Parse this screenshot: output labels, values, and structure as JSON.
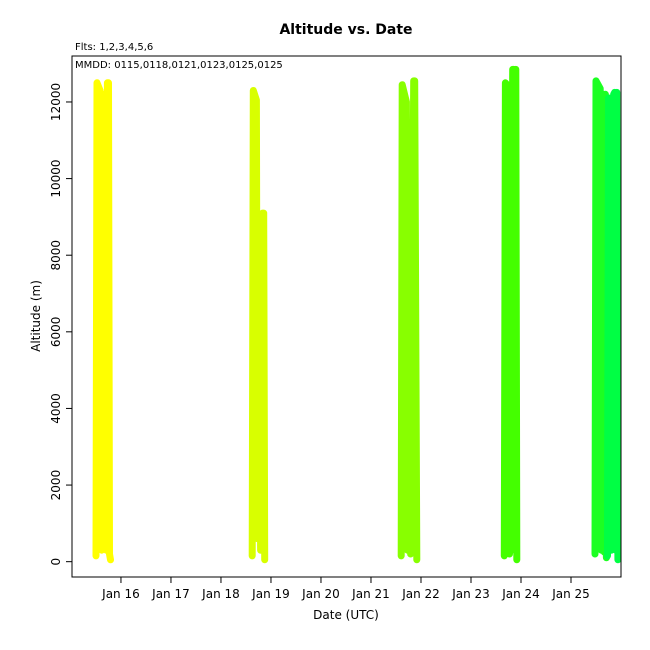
{
  "chart_data": {
    "type": "line",
    "title": "Altitude  vs. Date",
    "xlabel": "Date (UTC)",
    "ylabel": "Altitude (m)",
    "annotations": {
      "flights": "Flts: 1,2,3,4,5,6",
      "mmdd": "MMDD: 0115,0118,0121,0123,0125,0125"
    },
    "grid": false,
    "legend": "none",
    "xlim": [
      "Jan 15 00:30",
      "Jan 26 00:00"
    ],
    "ylim": [
      -400,
      13200
    ],
    "x_ticks": [
      "Jan 16",
      "Jan 17",
      "Jan 18",
      "Jan 19",
      "Jan 20",
      "Jan 21",
      "Jan 22",
      "Jan 23",
      "Jan 24",
      "Jan 25"
    ],
    "y_ticks": [
      0,
      2000,
      4000,
      6000,
      8000,
      10000,
      12000
    ],
    "series": [
      {
        "color": "#ffff00",
        "x": [
          "Jan 15 12:00",
          "Jan 15 12:30",
          "Jan 15 14:00",
          "Jan 15 14:45",
          "Jan 15 15:15",
          "Jan 15 16:00",
          "Jan 15 17:00",
          "Jan 15 17:30",
          "Jan 15 18:00",
          "Jan 15 18:30",
          "Jan 15 19:00"
        ],
        "y": [
          150,
          12500,
          12300,
          300,
          12200,
          8600,
          300,
          12500,
          12500,
          200,
          50
        ]
      },
      {
        "color": "#d8ff00",
        "x": [
          "Jan 18 15:00",
          "Jan 18 15:30",
          "Jan 18 17:00",
          "Jan 18 17:30",
          "Jan 18 18:30",
          "Jan 18 19:00",
          "Jan 18 20:00",
          "Jan 18 20:30",
          "Jan 18 21:00"
        ],
        "y": [
          150,
          12300,
          12050,
          600,
          5500,
          300,
          9100,
          9100,
          50
        ]
      },
      {
        "color": "#88ff00",
        "x": [
          "Jan 21 14:30",
          "Jan 21 15:00",
          "Jan 21 17:00",
          "Jan 21 17:30",
          "Jan 21 18:30",
          "Jan 21 19:00",
          "Jan 21 20:30",
          "Jan 21 21:00",
          "Jan 21 22:00"
        ],
        "y": [
          150,
          12450,
          12000,
          300,
          7300,
          200,
          12550,
          12550,
          50
        ]
      },
      {
        "color": "#44ff00",
        "x": [
          "Jan 23 16:00",
          "Jan 23 16:30",
          "Jan 23 18:00",
          "Jan 23 18:30",
          "Jan 23 20:00",
          "Jan 23 20:30",
          "Jan 23 21:00",
          "Jan 23 21:30",
          "Jan 23 22:00"
        ],
        "y": [
          150,
          12500,
          12400,
          200,
          12850,
          12850,
          300,
          12850,
          50
        ]
      },
      {
        "color": "#1cff22",
        "x": [
          "Jan 25 11:30",
          "Jan 25 12:00",
          "Jan 25 14:00",
          "Jan 25 14:30",
          "Jan 25 15:00",
          "Jan 25 15:30",
          "Jan 25 16:00",
          "Jan 25 16:30",
          "Jan 25 17:00"
        ],
        "y": [
          200,
          12550,
          12350,
          300,
          12200,
          12200,
          250,
          12200,
          100
        ]
      },
      {
        "color": "#00ff44",
        "x": [
          "Jan 25 17:30",
          "Jan 25 18:00",
          "Jan 25 19:00",
          "Jan 25 19:30",
          "Jan 25 20:30",
          "Jan 25 21:00",
          "Jan 25 21:30",
          "Jan 25 22:00",
          "Jan 25 22:30"
        ],
        "y": [
          150,
          12100,
          12100,
          300,
          12200,
          12250,
          300,
          12250,
          50
        ]
      }
    ]
  }
}
